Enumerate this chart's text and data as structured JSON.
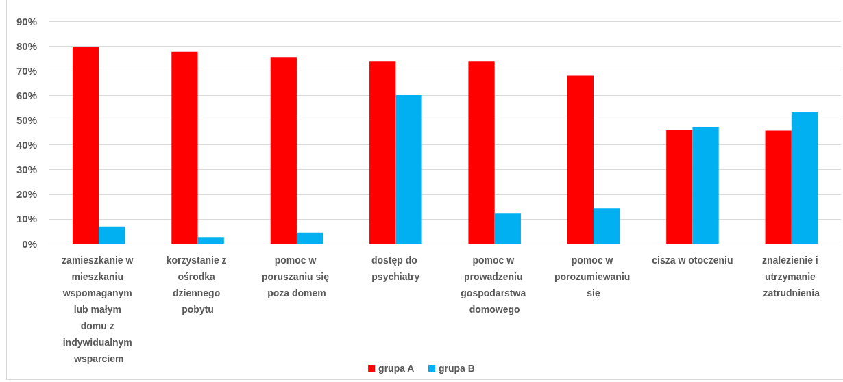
{
  "chart_data": {
    "type": "bar",
    "categories": [
      "zamieszkanie w mieszkaniu wspomaganym lub małym domu z indywidualnym wsparciem",
      "korzystanie z ośrodka dziennego pobytu",
      "pomoc w poruszaniu się poza domem",
      "dostęp do psychiatry",
      "pomoc w prowadzeniu gospodarstwa domowego",
      "pomoc w porozumiewaniu się",
      "cisza w otoczeniu",
      "znalezienie i utrzymanie zatrudnienia"
    ],
    "series": [
      {
        "name": "grupa A",
        "color": "#ff0000",
        "values": [
          79.7,
          77.6,
          75.5,
          73.9,
          73.9,
          68.0,
          46.0,
          45.8
        ]
      },
      {
        "name": "grupa B",
        "color": "#00b0f0",
        "values": [
          7.0,
          2.7,
          4.5,
          60.1,
          12.4,
          14.3,
          47.3,
          53.2
        ]
      }
    ],
    "ylim": [
      0,
      90
    ],
    "yticks": [
      {
        "value": 0,
        "label": "0%"
      },
      {
        "value": 10,
        "label": "10%"
      },
      {
        "value": 20,
        "label": "20%"
      },
      {
        "value": 30,
        "label": "30%"
      },
      {
        "value": 40,
        "label": "40%"
      },
      {
        "value": 50,
        "label": "50%"
      },
      {
        "value": 60,
        "label": "60%"
      },
      {
        "value": 70,
        "label": "70%"
      },
      {
        "value": 80,
        "label": "80%"
      },
      {
        "value": 90,
        "label": "90%"
      }
    ],
    "grid": "y",
    "legend": "bottom"
  }
}
